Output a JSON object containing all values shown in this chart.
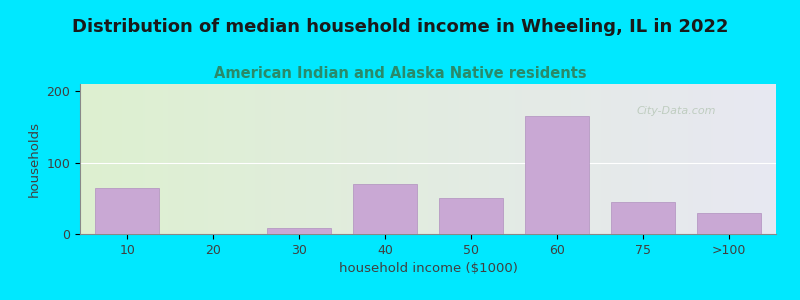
{
  "title": "Distribution of median household income in Wheeling, IL in 2022",
  "subtitle": "American Indian and Alaska Native residents",
  "xlabel": "household income ($1000)",
  "ylabel": "households",
  "categories": [
    "10",
    "20",
    "30",
    "40",
    "50",
    "60",
    "75",
    ">100"
  ],
  "values": [
    65,
    0,
    8,
    70,
    50,
    165,
    45,
    30
  ],
  "bar_color": "#c9a8d4",
  "bar_edgecolor": "#b090be",
  "ylim": [
    0,
    210
  ],
  "yticks": [
    0,
    100,
    200
  ],
  "background_outer": "#00e8ff",
  "bg_left_color": "#ddf0d0",
  "bg_right_color": "#e8e8f2",
  "title_fontsize": 13,
  "title_color": "#1a1a1a",
  "subtitle_fontsize": 10.5,
  "subtitle_color": "#2a8a6a",
  "axis_label_fontsize": 9.5,
  "tick_fontsize": 9,
  "tick_color": "#404040",
  "watermark_text": "City-Data.com",
  "watermark_color": "#b8c8b8",
  "gridline_color": "#ffffff",
  "spine_color": "#888888"
}
